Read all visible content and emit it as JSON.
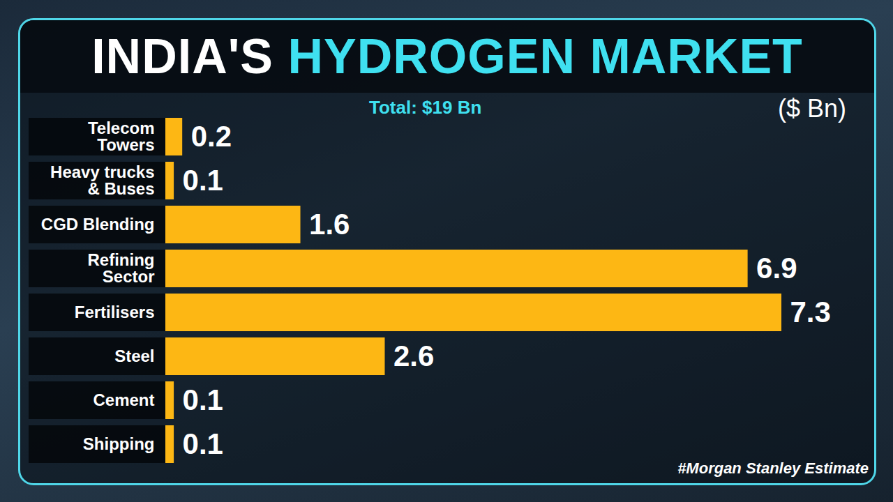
{
  "chart_data": {
    "type": "bar",
    "orientation": "horizontal",
    "title": "INDIA'S HYDROGEN MARKET",
    "subtitle": "Total: $19 Bn",
    "unit_label": "($ Bn)",
    "caption": "#Morgan Stanley Estimate",
    "categories": [
      "Telecom Towers",
      "Heavy trucks & Buses",
      "CGD Blending",
      "Refining Sector",
      "Fertilisers",
      "Steel",
      "Cement",
      "Shipping"
    ],
    "values": [
      0.2,
      0.1,
      1.6,
      6.9,
      7.3,
      2.6,
      0.1,
      0.1
    ],
    "color": "#fdb714",
    "data_labels": true,
    "tick_labels": "y",
    "grid": false
  }
}
